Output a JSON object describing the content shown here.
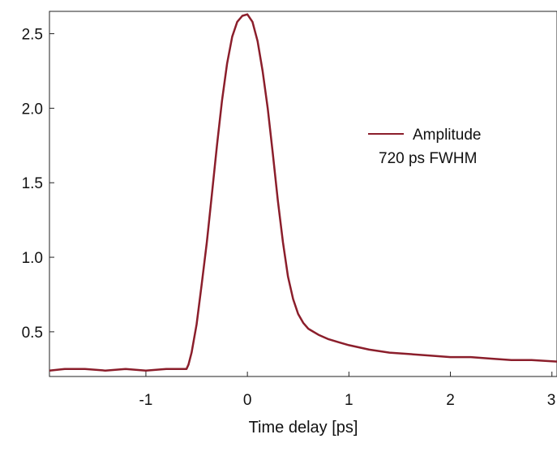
{
  "chart_data": {
    "type": "line",
    "title": "",
    "xlabel": "Time delay [ps]",
    "ylabel": "",
    "xlim": [
      -1.95,
      3.05
    ],
    "ylim": [
      0.2,
      2.65
    ],
    "x_ticks": [
      -1,
      0,
      1,
      2,
      3
    ],
    "x_tick_labels": [
      "-1",
      "0",
      "1",
      "2",
      "3"
    ],
    "y_ticks": [
      0.5,
      1.0,
      1.5,
      2.0,
      2.5
    ],
    "y_tick_labels": [
      "0.5",
      "1.0",
      "1.5",
      "2.0",
      "2.5"
    ],
    "grid": false,
    "legend": {
      "position": "right",
      "label": "Amplitude",
      "annotation": "720 ps FWHM"
    },
    "series": [
      {
        "name": "Amplitude",
        "color": "#8b1e2b",
        "x": [
          -1.95,
          -1.8,
          -1.6,
          -1.4,
          -1.2,
          -1.0,
          -0.8,
          -0.6,
          -0.58,
          -0.55,
          -0.5,
          -0.45,
          -0.4,
          -0.35,
          -0.3,
          -0.25,
          -0.2,
          -0.15,
          -0.1,
          -0.05,
          0.0,
          0.05,
          0.1,
          0.15,
          0.2,
          0.25,
          0.3,
          0.35,
          0.4,
          0.45,
          0.5,
          0.55,
          0.6,
          0.7,
          0.8,
          0.9,
          1.0,
          1.2,
          1.4,
          1.6,
          1.8,
          2.0,
          2.2,
          2.4,
          2.6,
          2.8,
          3.05
        ],
        "values": [
          0.24,
          0.25,
          0.25,
          0.24,
          0.25,
          0.24,
          0.25,
          0.25,
          0.28,
          0.36,
          0.55,
          0.82,
          1.1,
          1.42,
          1.75,
          2.05,
          2.3,
          2.48,
          2.58,
          2.62,
          2.63,
          2.58,
          2.45,
          2.25,
          2.0,
          1.7,
          1.38,
          1.1,
          0.87,
          0.72,
          0.62,
          0.56,
          0.52,
          0.48,
          0.45,
          0.43,
          0.41,
          0.38,
          0.36,
          0.35,
          0.34,
          0.33,
          0.33,
          0.32,
          0.31,
          0.31,
          0.3
        ]
      }
    ]
  }
}
